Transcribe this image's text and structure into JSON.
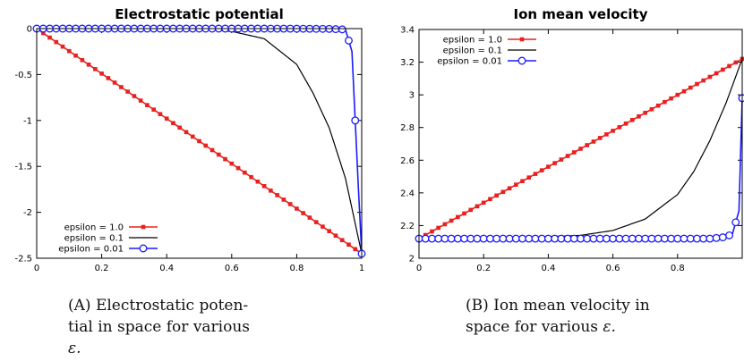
{
  "chart_data": [
    {
      "type": "line",
      "title": "Electrostatic potential",
      "xlabel": "",
      "ylabel": "",
      "xlim": [
        0,
        1
      ],
      "ylim": [
        -2.5,
        0
      ],
      "x_ticks": [
        0,
        0.2,
        0.4,
        0.6,
        0.8,
        1
      ],
      "x_tick_labels": [
        "0",
        "0.2",
        "0.4",
        "0.6",
        "0.8",
        "1"
      ],
      "y_ticks": [
        0,
        -0.5,
        -1,
        -1.5,
        -2,
        -2.5
      ],
      "y_tick_labels": [
        "0",
        "-0.5",
        "-1",
        "-1.5",
        "-2",
        "-2.5"
      ],
      "legend_position": "bottom-left",
      "grid": false,
      "series": [
        {
          "name": "epsilon = 1.0",
          "color": "#e8201e",
          "marker": "square",
          "x": [
            0,
            0.1,
            0.2,
            0.3,
            0.4,
            0.5,
            0.6,
            0.7,
            0.8,
            0.9,
            1.0
          ],
          "y": [
            0,
            -0.245,
            -0.49,
            -0.735,
            -0.98,
            -1.225,
            -1.47,
            -1.715,
            -1.96,
            -2.205,
            -2.45
          ]
        },
        {
          "name": "epsilon = 0.1",
          "color": "#000000",
          "marker": "none",
          "x": [
            0,
            0.3,
            0.5,
            0.6,
            0.7,
            0.8,
            0.85,
            0.9,
            0.95,
            1.0
          ],
          "y": [
            0,
            -0.0003,
            -0.008,
            -0.03,
            -0.11,
            -0.39,
            -0.7,
            -1.08,
            -1.63,
            -2.45
          ]
        },
        {
          "name": "epsilon = 0.01",
          "color": "#1a1aff",
          "marker": "circle",
          "x": [
            0,
            0.1,
            0.2,
            0.3,
            0.4,
            0.5,
            0.6,
            0.7,
            0.8,
            0.9,
            0.95,
            0.97,
            0.99,
            1.0
          ],
          "y": [
            0,
            0,
            0,
            0,
            0,
            0,
            0,
            0,
            -0.001,
            -0.003,
            -0.01,
            -0.25,
            -1.75,
            -2.45
          ]
        }
      ]
    },
    {
      "type": "line",
      "title": "Ion mean velocity",
      "xlabel": "",
      "ylabel": "",
      "xlim": [
        0,
        1
      ],
      "ylim": [
        2,
        3.4
      ],
      "x_ticks": [
        0,
        0.2,
        0.4,
        0.6,
        0.8
      ],
      "x_tick_labels": [
        "0",
        "0.2",
        "0.4",
        "0.6",
        "0.8"
      ],
      "y_ticks": [
        2,
        2.2,
        2.4,
        2.6,
        2.8,
        3,
        3.2,
        3.4
      ],
      "y_tick_labels": [
        "2",
        "2.2",
        "2.4",
        "2.6",
        "2.8",
        "3",
        "3.2",
        "3.4"
      ],
      "legend_position": "top-left",
      "grid": false,
      "series": [
        {
          "name": "epsilon = 1.0",
          "color": "#e8201e",
          "marker": "square",
          "x": [
            0,
            0.1,
            0.2,
            0.3,
            0.4,
            0.5,
            0.6,
            0.7,
            0.8,
            0.9,
            1.0
          ],
          "y": [
            2.12,
            2.23,
            2.34,
            2.45,
            2.56,
            2.67,
            2.78,
            2.89,
            3.0,
            3.11,
            3.22
          ]
        },
        {
          "name": "epsilon = 0.1",
          "color": "#000000",
          "marker": "none",
          "x": [
            0,
            0.3,
            0.5,
            0.6,
            0.7,
            0.8,
            0.85,
            0.9,
            0.95,
            1.0
          ],
          "y": [
            2.12,
            2.125,
            2.14,
            2.17,
            2.24,
            2.39,
            2.53,
            2.72,
            2.95,
            3.22
          ]
        },
        {
          "name": "epsilon = 0.01",
          "color": "#1a1aff",
          "marker": "circle",
          "x": [
            0,
            0.2,
            0.4,
            0.6,
            0.8,
            0.9,
            0.95,
            0.97,
            0.99,
            1.0
          ],
          "y": [
            2.12,
            2.12,
            2.12,
            2.12,
            2.12,
            2.12,
            2.13,
            2.15,
            2.29,
            2.98
          ]
        }
      ]
    }
  ],
  "captions": [
    {
      "label": "(A)",
      "lines": [
        "Electrostatic poten-",
        "tial in space for various"
      ],
      "last_line": "ε."
    },
    {
      "label": "(B)",
      "lines": [
        "Ion mean velocity in",
        "space for various"
      ],
      "last_line": "ε."
    }
  ]
}
